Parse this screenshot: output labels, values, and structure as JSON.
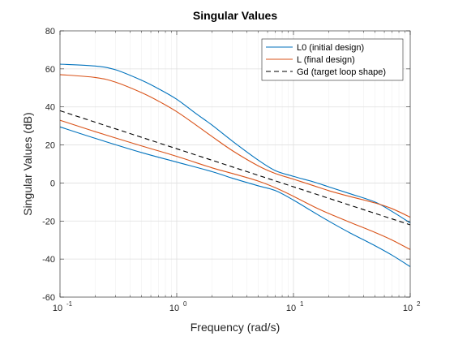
{
  "chart_data": {
    "type": "line",
    "title": "Singular Values",
    "xlabel": "Frequency (rad/s)",
    "ylabel": "Singular Values (dB)",
    "xscale": "log",
    "xlim": [
      0.1,
      100
    ],
    "ylim": [
      -60,
      80
    ],
    "grid": true,
    "legend_position": "top-right",
    "x_ticks": [
      {
        "value": 0.1,
        "base": "10",
        "exp": "-1"
      },
      {
        "value": 1,
        "base": "10",
        "exp": "0"
      },
      {
        "value": 10,
        "base": "10",
        "exp": "1"
      },
      {
        "value": 100,
        "base": "10",
        "exp": "2"
      }
    ],
    "y_ticks": [
      {
        "value": 80,
        "label": "80"
      },
      {
        "value": 60,
        "label": "60"
      },
      {
        "value": 40,
        "label": "40"
      },
      {
        "value": 20,
        "label": "20"
      },
      {
        "value": 0,
        "label": "0"
      },
      {
        "value": -20,
        "label": "-20"
      },
      {
        "value": -40,
        "label": "-40"
      },
      {
        "value": -60,
        "label": "-60"
      }
    ],
    "series": [
      {
        "name": "L0 (initial design)",
        "color": "#0072BD",
        "dash": "solid",
        "legend": true,
        "x": [
          0.1,
          0.2,
          0.3,
          0.5,
          0.7,
          1.0,
          1.5,
          2.0,
          3.0,
          5.0,
          7.0,
          10.0,
          15.0,
          20.0,
          30.0,
          50.0,
          70.0,
          100.0
        ],
        "y": [
          62.5,
          61.5,
          59.5,
          54.0,
          49.5,
          44.0,
          36.0,
          30.5,
          22.0,
          12.0,
          6.5,
          3.5,
          0.5,
          -2.0,
          -5.5,
          -10.0,
          -15.0,
          -21.0
        ]
      },
      {
        "name": "",
        "color": "#0072BD",
        "dash": "solid",
        "legend": false,
        "x": [
          0.1,
          0.2,
          0.5,
          1.0,
          2.0,
          3.0,
          5.0,
          7.0,
          10.0,
          15.0,
          20.0,
          30.0,
          50.0,
          70.0,
          100.0
        ],
        "y": [
          29.5,
          23.5,
          16.0,
          11.0,
          6.0,
          2.5,
          -1.5,
          -4.0,
          -9.0,
          -15.5,
          -20.0,
          -26.0,
          -33.0,
          -38.0,
          -44.0
        ]
      },
      {
        "name": "L (final design)",
        "color": "#D95319",
        "dash": "solid",
        "legend": true,
        "x": [
          0.1,
          0.2,
          0.3,
          0.5,
          0.7,
          1.0,
          1.5,
          2.0,
          3.0,
          5.0,
          7.0,
          10.0,
          15.0,
          20.0,
          30.0,
          50.0,
          70.0,
          100.0
        ],
        "y": [
          57.0,
          55.5,
          53.0,
          47.5,
          43.0,
          37.5,
          30.0,
          24.5,
          17.0,
          9.0,
          5.0,
          2.0,
          -1.5,
          -4.0,
          -7.0,
          -10.5,
          -13.5,
          -18.0
        ]
      },
      {
        "name": "",
        "color": "#D95319",
        "dash": "solid",
        "legend": false,
        "x": [
          0.1,
          0.2,
          0.5,
          1.0,
          2.0,
          3.0,
          5.0,
          7.0,
          10.0,
          15.0,
          20.0,
          30.0,
          50.0,
          70.0,
          100.0
        ],
        "y": [
          33.0,
          27.0,
          19.5,
          14.0,
          8.0,
          5.0,
          1.0,
          -2.5,
          -7.0,
          -12.5,
          -16.0,
          -20.5,
          -26.0,
          -30.0,
          -35.0
        ]
      },
      {
        "name": "Gd (target loop shape)",
        "color": "#000000",
        "dash": "dashed",
        "legend": true,
        "x": [
          0.1,
          100.0
        ],
        "y": [
          38.0,
          -22.0
        ]
      }
    ]
  }
}
